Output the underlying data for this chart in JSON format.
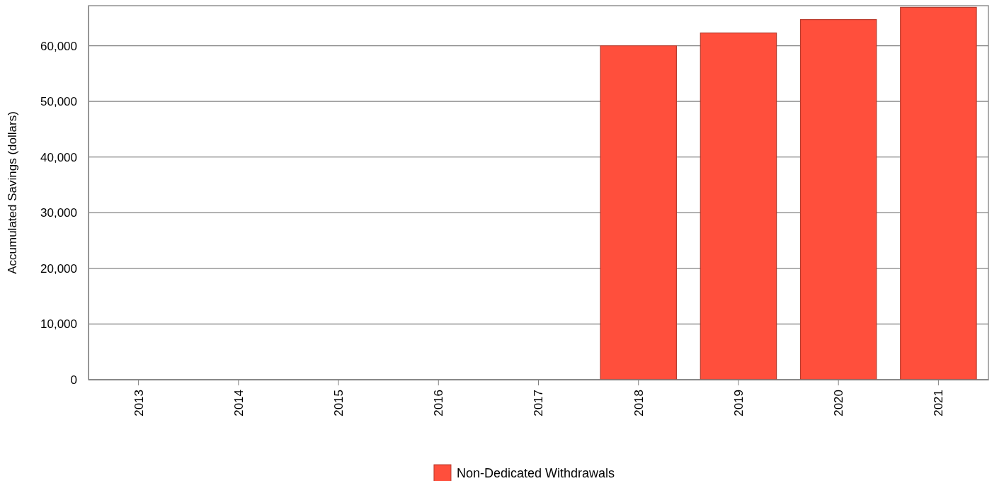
{
  "chart_data": {
    "type": "bar",
    "ylabel": "Accumulated Savings (dollars)",
    "categories": [
      "2013",
      "2014",
      "2015",
      "2016",
      "2017",
      "2018",
      "2019",
      "2020",
      "2021"
    ],
    "series": [
      {
        "name": "Non-Dedicated Withdrawals",
        "color": "#ff4f3c",
        "values": [
          null,
          null,
          null,
          null,
          null,
          60000,
          62300,
          64700,
          66900
        ]
      }
    ],
    "ylim": [
      0,
      67200
    ],
    "yticks": [
      0,
      {
        "value": 10000,
        "label": "10,000"
      },
      {
        "value": 20000,
        "label": "20,000"
      },
      {
        "value": 30000,
        "label": "30,000"
      },
      {
        "value": 40000,
        "label": "40,000"
      },
      {
        "value": 50000,
        "label": "50,000"
      },
      {
        "value": 60000,
        "label": "60,000"
      }
    ],
    "grid": "y",
    "legend": "bottom"
  }
}
